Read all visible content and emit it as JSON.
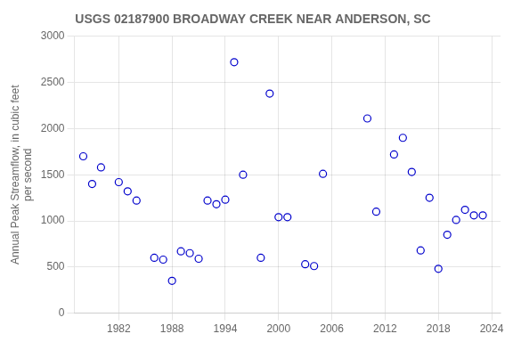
{
  "chart_data": {
    "type": "scatter",
    "title": "USGS 02187900 BROADWAY CREEK NEAR ANDERSON, SC",
    "ylabel": "Annual Peak Streamflow, in cubic feet\nper second",
    "x": [
      1978,
      1979,
      1980,
      1982,
      1983,
      1984,
      1986,
      1987,
      1988,
      1989,
      1990,
      1991,
      1992,
      1993,
      1994,
      1995,
      1996,
      1998,
      1999,
      2000,
      2001,
      2003,
      2004,
      2005,
      2010,
      2011,
      2013,
      2014,
      2015,
      2016,
      2017,
      2018,
      2019,
      2020,
      2021,
      2022,
      2023
    ],
    "values": [
      1700,
      1400,
      1580,
      1420,
      1320,
      1220,
      600,
      580,
      350,
      670,
      650,
      590,
      1220,
      1180,
      1230,
      2720,
      1500,
      600,
      2380,
      1040,
      1040,
      530,
      510,
      1510,
      2110,
      1100,
      1720,
      1900,
      1530,
      680,
      1250,
      480,
      850,
      1010,
      1120,
      1060,
      1060
    ],
    "color": "#0000CC",
    "marker": "circle",
    "xlim": [
      1977,
      2025
    ],
    "ylim": [
      0,
      3000
    ],
    "xticks": [
      1982,
      1988,
      1994,
      2000,
      2006,
      2012,
      2018,
      2024
    ],
    "yticks": [
      0,
      500,
      1000,
      1500,
      2000,
      2500,
      3000
    ],
    "grid": true
  }
}
